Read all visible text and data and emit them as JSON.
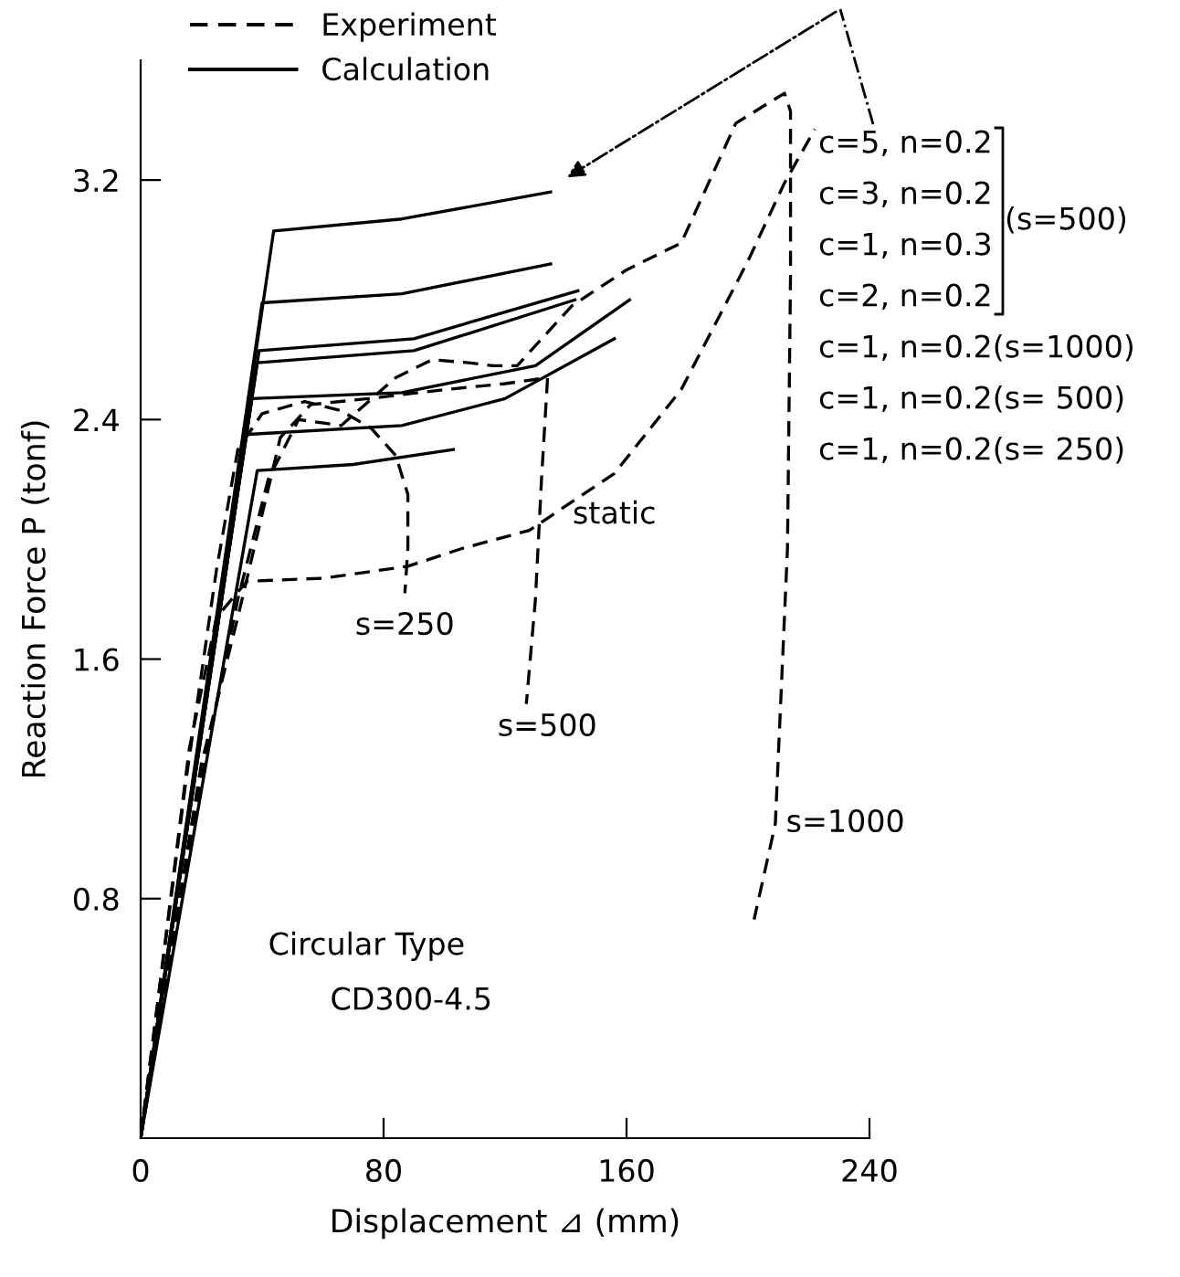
{
  "chart_data": {
    "type": "line",
    "xlabel": "Displacement ⊿ (mm)",
    "ylabel": "Reaction Force P (tonf)",
    "xlim": [
      0,
      240
    ],
    "ylim": [
      0,
      3.6
    ],
    "xticks": [
      0,
      80,
      160,
      240
    ],
    "yticks": [
      0.8,
      1.6,
      2.4,
      3.2
    ],
    "grid": false,
    "legend": "top right",
    "marker": "none",
    "series": [
      {
        "name": "c=5, n=0.2",
        "color": "#000000",
        "line_style": "solid",
        "x": [
          0,
          43.8,
          86,
          135
        ],
        "values": [
          0,
          3.03,
          3.07,
          3.16
        ]
      },
      {
        "name": "c=3, n=0.2",
        "color": "#000000",
        "line_style": "solid",
        "x": [
          0,
          40,
          86,
          135
        ],
        "values": [
          0,
          2.79,
          2.82,
          2.92
        ]
      },
      {
        "name": "c=1, n=0.3",
        "color": "#000000",
        "line_style": "solid",
        "x": [
          0,
          39,
          90,
          144
        ],
        "values": [
          0,
          2.63,
          2.67,
          2.83
        ]
      },
      {
        "name": "c=2, n=0.2",
        "color": "#000000",
        "line_style": "solid",
        "x": [
          0,
          38.4,
          90,
          143
        ],
        "values": [
          0,
          2.59,
          2.63,
          2.8
        ]
      },
      {
        "name": "c=1, n=0.2(s=1000)",
        "color": "#000000",
        "line_style": "solid",
        "x": [
          0,
          36.6,
          86,
          130,
          161
        ],
        "values": [
          0,
          2.47,
          2.49,
          2.58,
          2.8
        ]
      },
      {
        "name": "c=1, n=0.2(s= 500)",
        "color": "#000000",
        "line_style": "solid",
        "x": [
          0,
          34.2,
          86,
          120,
          156
        ],
        "values": [
          0,
          2.35,
          2.38,
          2.47,
          2.67
        ]
      },
      {
        "name": "c=1, n=0.2(s= 250)",
        "color": "#000000",
        "line_style": "solid",
        "x": [
          0,
          38.4,
          70,
          103
        ],
        "values": [
          0,
          2.23,
          2.25,
          2.3
        ]
      },
      {
        "color": "#000000",
        "line_style": "dashed",
        "x": [
          0,
          16,
          25,
          35,
          60,
          88,
          106,
          128,
          156,
          178,
          200,
          212,
          222
        ],
        "values": [
          0,
          1.3,
          1.74,
          1.86,
          1.87,
          1.91,
          1.97,
          2.03,
          2.22,
          2.5,
          2.93,
          3.19,
          3.37
        ]
      },
      {
        "color": "#000000",
        "line_style": "dashed",
        "x": [
          0,
          15,
          25,
          32,
          40,
          54,
          66,
          76,
          84,
          88,
          88,
          87
        ],
        "values": [
          0,
          1.2,
          1.9,
          2.3,
          2.42,
          2.46,
          2.43,
          2.37,
          2.28,
          2.15,
          1.97,
          1.82
        ]
      },
      {
        "color": "#000000",
        "line_style": "dashed",
        "x": [
          0,
          20,
          32,
          46,
          56,
          75,
          100,
          120,
          134,
          132,
          130,
          127
        ],
        "values": [
          0,
          1.25,
          1.74,
          2.34,
          2.45,
          2.47,
          2.5,
          2.52,
          2.54,
          2.2,
          1.8,
          1.45
        ]
      },
      {
        "color": "#000000",
        "line_style": "dashed",
        "x": [
          0,
          20,
          32,
          42,
          52,
          66,
          84,
          96,
          108,
          116,
          124,
          142,
          160,
          178,
          196,
          212,
          214,
          214,
          213,
          209,
          202
        ],
        "values": [
          0,
          1.2,
          1.8,
          2.2,
          2.4,
          2.38,
          2.54,
          2.6,
          2.59,
          2.58,
          2.58,
          2.78,
          2.9,
          2.99,
          3.39,
          3.49,
          3.43,
          2.88,
          1.97,
          1.05,
          0.73
        ]
      }
    ],
    "annotations": [
      "Experiment",
      "Calculation",
      "(s=500)",
      "Circular Type",
      "CD300-4.5",
      "static",
      "s=250",
      "s=500",
      "s=1000"
    ]
  }
}
